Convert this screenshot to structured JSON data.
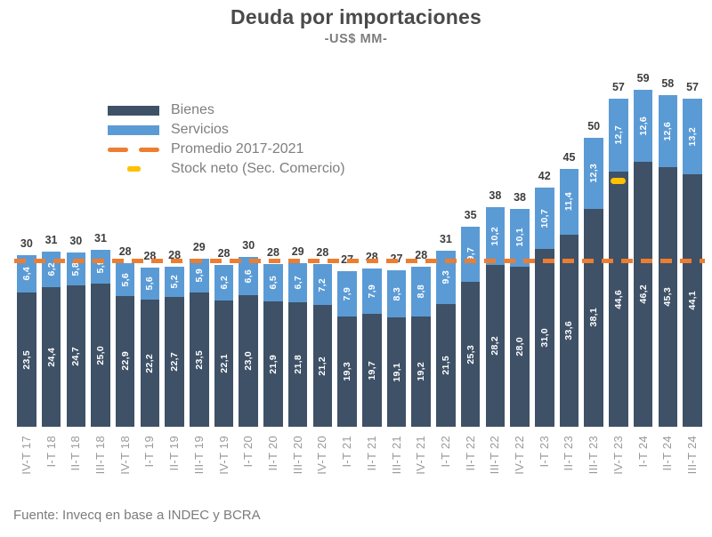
{
  "title": "Deuda por importaciones",
  "subtitle": "-US$ MM-",
  "footer": "Fuente: Invecq en base a INDEC y BCRA",
  "legend": {
    "bienes": "Bienes",
    "servicios": "Servicios",
    "promedio": "Promedio 2017-2021",
    "stock": "Stock neto (Sec. Comercio)"
  },
  "colors": {
    "bienes": "#3e5166",
    "servicios": "#5b9bd5",
    "promedio": "#ed7d31",
    "stock": "#ffc000",
    "total_label": "#3d3d3d",
    "axis_label": "#9a9a9a",
    "title_text": "#4a4a4a",
    "legend_text": "#7f7f7f"
  },
  "chart_data": {
    "type": "bar",
    "stacked": true,
    "title": "Deuda por importaciones",
    "subtitle": "-US$ MM-",
    "xlabel": "",
    "ylabel": "US$ MM",
    "ylim": [
      0,
      62
    ],
    "grid": false,
    "legend_position": "upper-left",
    "decimal_separator": ",",
    "categories": [
      "IV-T 17",
      "I-T 18",
      "II-T 18",
      "III-T 18",
      "IV-T 18",
      "I-T 19",
      "II-T 19",
      "III-T 19",
      "IV-T 19",
      "I-T 20",
      "II-T 20",
      "III-T 20",
      "IV-T 20",
      "I-T 21",
      "II-T 21",
      "III-T 21",
      "IV-T 21",
      "I-T 22",
      "II-T 22",
      "III-T 22",
      "IV-T 22",
      "I-T 23",
      "II-T 23",
      "III-T 23",
      "IV-T 23",
      "I-T 24",
      "II-T 24",
      "III-T 24"
    ],
    "series": [
      {
        "name": "Bienes",
        "color": "#3e5166",
        "values": [
          23.5,
          24.4,
          24.7,
          25.0,
          22.9,
          22.2,
          22.7,
          23.5,
          22.1,
          23.0,
          21.9,
          21.8,
          21.2,
          19.3,
          19.7,
          19.1,
          19.2,
          21.5,
          25.3,
          28.2,
          28.0,
          31.0,
          33.6,
          38.1,
          44.6,
          46.2,
          45.3,
          44.1
        ]
      },
      {
        "name": "Servicios",
        "color": "#5b9bd5",
        "values": [
          6.4,
          6.2,
          5.8,
          5.9,
          5.6,
          5.6,
          5.2,
          5.9,
          6.2,
          6.6,
          6.5,
          6.7,
          7.2,
          7.9,
          7.9,
          8.3,
          8.8,
          9.3,
          9.7,
          10.2,
          10.1,
          10.7,
          11.4,
          12.3,
          12.7,
          12.6,
          12.6,
          13.2
        ]
      }
    ],
    "totals": [
      30,
      31,
      30,
      31,
      28,
      28,
      28,
      29,
      28,
      30,
      28,
      29,
      28,
      27,
      28,
      27,
      28,
      31,
      35,
      38,
      38,
      42,
      45,
      50,
      57,
      59,
      58,
      57
    ],
    "reference_line": {
      "label": "Promedio 2017-2021",
      "value": 29,
      "color": "#ed7d31"
    },
    "marker": {
      "label": "Stock neto (Sec. Comercio)",
      "category": "IV-T 23",
      "value": 43,
      "color": "#ffc000"
    }
  }
}
